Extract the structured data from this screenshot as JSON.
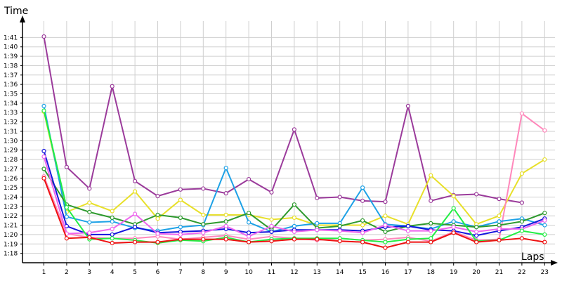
{
  "chart_data": {
    "type": "line",
    "title": "",
    "xlabel": "Laps",
    "ylabel": "Time",
    "x": [
      1,
      2,
      3,
      4,
      5,
      6,
      7,
      8,
      9,
      10,
      11,
      12,
      13,
      14,
      15,
      16,
      17,
      18,
      19,
      20,
      21,
      22,
      23
    ],
    "y_ticks": [
      "1:18",
      "1:19",
      "1:20",
      "1:21",
      "1:22",
      "1:23",
      "1:24",
      "1:25",
      "1:26",
      "1:27",
      "1:28",
      "1:29",
      "1:30",
      "1:31",
      "1:32",
      "1:33",
      "1:34",
      "1:35",
      "1:36",
      "1:37",
      "1:38",
      "1:39",
      "1:40",
      "1:41"
    ],
    "ylim": [
      "1:17",
      "1:42"
    ],
    "grid": true,
    "series": [
      {
        "color": "#9b3b9b",
        "values": [
          "1:41.1",
          "1:27.2",
          "1:24.9",
          "1:35.8",
          "1:25.7",
          "1:24.1",
          "1:24.8",
          "1:24.9",
          "1:24.4",
          "1:25.9",
          "1:24.5",
          "1:31.2",
          "1:23.9",
          "1:24.0",
          "1:23.6",
          "1:23.5",
          "1:33.7",
          "1:23.6",
          "1:24.2",
          "1:24.3",
          "1:23.8",
          "1:23.4",
          null
        ]
      },
      {
        "color": "#e8e02a",
        "values": [
          "1:33.1",
          "1:22.4",
          "1:23.4",
          "1:22.5",
          "1:24.6",
          "1:21.7",
          "1:23.7",
          "1:22.1",
          "1:22.1",
          "1:22.1",
          "1:21.6",
          "1:21.8",
          "1:21.0",
          "1:21.0",
          "1:21.0",
          "1:22.0",
          "1:21.1",
          "1:26.3",
          "1:24.1",
          "1:21.1",
          "1:22.0",
          "1:26.5",
          "1:28.0"
        ]
      },
      {
        "color": "#ff88bb",
        "values": [
          "1:26.2",
          "1:20.1",
          "1:19.7",
          "1:19.6",
          "1:19.6",
          "1:19.8",
          "1:19.5",
          "1:19.7",
          "1:19.9",
          "1:19.5",
          "1:19.8",
          "1:19.6",
          "1:19.4",
          "1:19.6",
          "1:19.4",
          "1:19.5",
          "1:19.7",
          "1:19.3",
          "1:20.3",
          "1:19.4",
          "1:19.5",
          "1:32.9",
          "1:31.1"
        ]
      },
      {
        "color": "#1da1e6",
        "values": [
          "1:33.7",
          "1:21.9",
          "1:21.3",
          "1:21.4",
          "1:20.7",
          "1:20.4",
          "1:20.8",
          "1:21.0",
          "1:27.1",
          "1:21.3",
          "1:20.3",
          "1:20.9",
          "1:21.2",
          "1:21.2",
          "1:25.0",
          "1:21.1",
          "1:20.9",
          "1:20.6",
          "1:21.4",
          "1:20.8",
          "1:21.4",
          "1:21.7",
          "1:21.0"
        ]
      },
      {
        "color": "#2e9a2e",
        "values": [
          "1:27.0",
          "1:23.2",
          "1:22.4",
          "1:21.8",
          "1:21.1",
          "1:22.1",
          "1:21.8",
          "1:21.1",
          "1:21.4",
          "1:22.3",
          "1:20.5",
          "1:23.2",
          "1:20.7",
          "1:20.9",
          "1:21.5",
          "1:20.3",
          "1:20.9",
          "1:21.2",
          "1:21.0",
          "1:20.8",
          "1:21.0",
          "1:21.4",
          "1:22.3"
        ]
      },
      {
        "color": "#1515dd",
        "values": [
          "1:28.9",
          "1:20.9",
          "1:20.0",
          "1:20.0",
          "1:20.8",
          "1:20.2",
          "1:20.3",
          "1:20.4",
          "1:20.6",
          "1:20.2",
          "1:20.3",
          "1:20.5",
          "1:20.5",
          "1:20.5",
          "1:20.4",
          "1:20.8",
          "1:20.9",
          "1:20.5",
          "1:20.4",
          "1:19.9",
          "1:20.4",
          "1:20.8",
          "1:21.7"
        ]
      },
      {
        "color": "#ee66ee",
        "values": [
          "1:28.3",
          "1:20.1",
          "1:20.2",
          "1:20.6",
          "1:22.2",
          "1:20.1",
          "1:20.0",
          "1:20.2",
          "1:20.9",
          "1:19.8",
          "1:20.9",
          "1:20.3",
          "1:20.5",
          "1:20.4",
          "1:20.2",
          "1:21.0",
          "1:20.4",
          "1:20.4",
          "1:20.8",
          "1:20.3",
          "1:20.6",
          "1:20.6",
          "1:21.5"
        ]
      },
      {
        "color": "#22ee44",
        "values": [
          "1:33.2",
          "1:22.9",
          "1:19.5",
          "1:19.6",
          "1:19.4",
          "1:19.1",
          "1:19.4",
          "1:19.3",
          "1:19.7",
          "1:19.2",
          "1:19.5",
          "1:19.6",
          "1:19.6",
          "1:19.6",
          "1:19.4",
          "1:19.2",
          "1:19.5",
          "1:19.6",
          "1:22.8",
          "1:19.3",
          "1:19.4",
          "1:20.4",
          "1:20.0"
        ]
      },
      {
        "color": "#ee1111",
        "values": [
          "1:26.0",
          "1:19.6",
          "1:19.7",
          "1:19.1",
          "1:19.2",
          "1:19.2",
          "1:19.5",
          "1:19.5",
          "1:19.5",
          "1:19.2",
          "1:19.3",
          "1:19.5",
          "1:19.5",
          "1:19.3",
          "1:19.2",
          "1:18.6",
          "1:19.2",
          "1:19.2",
          "1:20.2",
          "1:19.2",
          "1:19.4",
          "1:19.6",
          "1:19.2"
        ]
      }
    ]
  }
}
